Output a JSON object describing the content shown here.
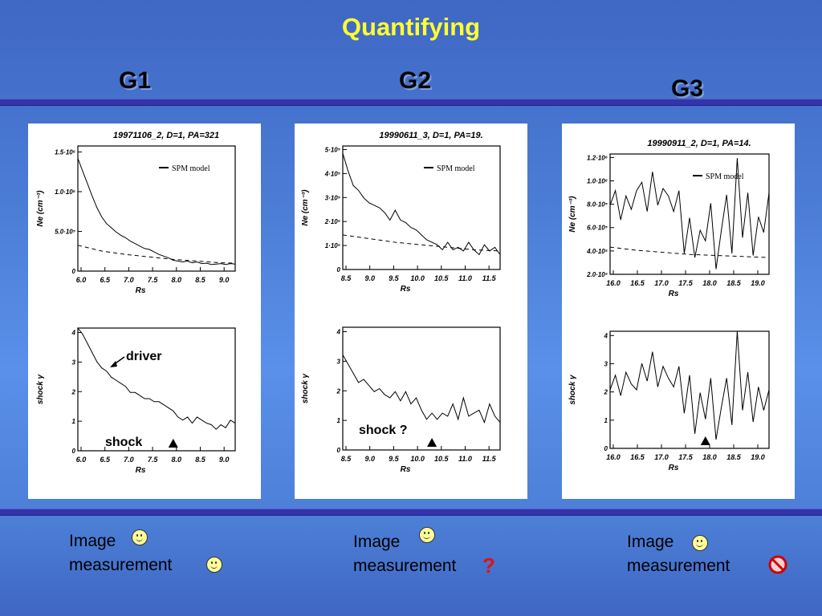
{
  "slide": {
    "title": "Quantifying",
    "groups": [
      "G1",
      "G2",
      "G3"
    ],
    "captions": {
      "image": "Image",
      "measurement": "measurement",
      "g2_mark": "?"
    },
    "colors": {
      "title": "#ffff33",
      "rule": "#3333aa",
      "question_mark": "#e01010"
    },
    "status_icons": [
      "smiley-icon",
      "smiley-icon",
      "smiley-icon",
      "question-mark",
      "smiley-icon",
      "no-entry-icon"
    ]
  },
  "chart_data": [
    {
      "type": "line",
      "group": "G1",
      "title": "19971106_2, D=1, PA=321",
      "xlabel": "Rs",
      "ylabel": "Ne (cm⁻³)",
      "legend": "SPM model",
      "legend_position": "top-right",
      "xlim": [
        6.0,
        9.3
      ],
      "xticks": [
        "6.0",
        "6.5",
        "7.0",
        "7.5",
        "8.0",
        "8.5",
        "9.0"
      ],
      "yticks": [
        "0",
        "5.0·10⁵",
        "1.0·10⁶",
        "1.5·10⁶"
      ],
      "ylim": [
        0,
        1500000
      ],
      "series": [
        {
          "style": "solid",
          "x": [
            6.0,
            6.1,
            6.2,
            6.3,
            6.4,
            6.5,
            6.6,
            6.7,
            6.8,
            6.9,
            7.0,
            7.1,
            7.2,
            7.3,
            7.4,
            7.5,
            7.6,
            7.7,
            7.8,
            7.9,
            8.0,
            8.1,
            8.2,
            8.3,
            8.4,
            8.5,
            8.6,
            8.7,
            8.8,
            8.9,
            9.0,
            9.1,
            9.2,
            9.3
          ],
          "y": [
            1350000,
            1200000,
            1050000,
            900000,
            760000,
            650000,
            570000,
            520000,
            470000,
            430000,
            400000,
            360000,
            330000,
            300000,
            270000,
            260000,
            230000,
            200000,
            180000,
            160000,
            130000,
            120000,
            110000,
            120000,
            100000,
            110000,
            90000,
            95000,
            80000,
            85000,
            90000,
            80000,
            90000,
            85000
          ]
        },
        {
          "name": "SPM model",
          "style": "dashed",
          "x": [
            6.0,
            6.5,
            7.0,
            7.5,
            8.0,
            8.5,
            9.0,
            9.3
          ],
          "y": [
            310000,
            240000,
            200000,
            170000,
            140000,
            120000,
            100000,
            95000
          ]
        }
      ]
    },
    {
      "type": "line",
      "group": "G1",
      "xlabel": "Rs",
      "ylabel": "shock γ",
      "xlim": [
        6.0,
        9.3
      ],
      "ylim": [
        0,
        4
      ],
      "xticks": [
        "6.0",
        "6.5",
        "7.0",
        "7.5",
        "8.0",
        "8.5",
        "9.0"
      ],
      "yticks": [
        "0",
        "1",
        "2",
        "3",
        "4"
      ],
      "annotations": [
        "driver",
        "shock"
      ],
      "shock_marker_x": 8.0,
      "series": [
        {
          "style": "solid",
          "x": [
            6.0,
            6.1,
            6.2,
            6.3,
            6.4,
            6.5,
            6.6,
            6.7,
            6.8,
            6.9,
            7.0,
            7.1,
            7.2,
            7.3,
            7.4,
            7.5,
            7.6,
            7.7,
            7.8,
            7.9,
            8.0,
            8.1,
            8.2,
            8.3,
            8.4,
            8.5,
            8.6,
            8.7,
            8.8,
            8.9,
            9.0,
            9.1,
            9.2,
            9.3
          ],
          "y": [
            4.0,
            3.8,
            3.5,
            3.2,
            2.9,
            2.7,
            2.6,
            2.4,
            2.3,
            2.2,
            2.1,
            1.9,
            1.9,
            1.8,
            1.7,
            1.7,
            1.6,
            1.6,
            1.5,
            1.4,
            1.3,
            1.1,
            1.0,
            1.1,
            0.9,
            1.1,
            1.0,
            0.9,
            0.85,
            0.7,
            0.85,
            0.75,
            1.0,
            0.9
          ]
        }
      ]
    },
    {
      "type": "line",
      "group": "G2",
      "title": "19990611_3, D=1, PA=19.",
      "xlabel": "Rs",
      "ylabel": "Ne (cm⁻³)",
      "legend": "SPM model",
      "legend_position": "top-right",
      "xlim": [
        8.5,
        11.5
      ],
      "xticks": [
        "8.5",
        "9.0",
        "9.5",
        "10.0",
        "10.5",
        "11.0",
        "11.5"
      ],
      "yticks": [
        "0",
        "1·10⁵",
        "2·10⁵",
        "3·10⁵",
        "4·10⁵",
        "5·10⁵"
      ],
      "ylim": [
        0,
        500000
      ],
      "series": [
        {
          "style": "solid",
          "x": [
            8.5,
            8.6,
            8.7,
            8.8,
            8.9,
            9.0,
            9.1,
            9.2,
            9.3,
            9.4,
            9.5,
            9.6,
            9.7,
            9.8,
            9.9,
            10.0,
            10.1,
            10.2,
            10.3,
            10.4,
            10.5,
            10.6,
            10.7,
            10.8,
            10.9,
            11.0,
            11.1,
            11.2,
            11.3,
            11.4,
            11.5
          ],
          "y": [
            470000,
            400000,
            340000,
            320000,
            290000,
            270000,
            260000,
            250000,
            230000,
            200000,
            240000,
            200000,
            190000,
            170000,
            160000,
            140000,
            120000,
            110000,
            100000,
            80000,
            110000,
            80000,
            90000,
            75000,
            110000,
            80000,
            60000,
            100000,
            75000,
            90000,
            60000
          ]
        },
        {
          "name": "SPM model",
          "style": "dashed",
          "x": [
            8.5,
            9.0,
            9.5,
            10.0,
            10.5,
            11.0,
            11.5
          ],
          "y": [
            140000,
            125000,
            110000,
            100000,
            90000,
            80000,
            75000
          ]
        }
      ]
    },
    {
      "type": "line",
      "group": "G2",
      "xlabel": "Rs",
      "ylabel": "shock γ",
      "xlim": [
        8.5,
        11.5
      ],
      "ylim": [
        0,
        4
      ],
      "xticks": [
        "8.5",
        "9.0",
        "9.5",
        "10.0",
        "10.5",
        "11.0",
        "11.5"
      ],
      "yticks": [
        "0",
        "1",
        "2",
        "3",
        "4"
      ],
      "annotations": [
        "shock ?"
      ],
      "shock_marker_x": 10.2,
      "series": [
        {
          "style": "solid",
          "x": [
            8.5,
            8.6,
            8.7,
            8.8,
            8.9,
            9.0,
            9.1,
            9.2,
            9.3,
            9.4,
            9.5,
            9.6,
            9.7,
            9.8,
            9.9,
            10.0,
            10.1,
            10.2,
            10.3,
            10.4,
            10.5,
            10.6,
            10.7,
            10.8,
            10.9,
            11.0,
            11.1,
            11.2,
            11.3,
            11.4,
            11.5
          ],
          "y": [
            3.1,
            2.8,
            2.5,
            2.2,
            2.3,
            2.1,
            1.9,
            2.0,
            1.8,
            1.7,
            1.9,
            1.6,
            1.9,
            1.5,
            1.7,
            1.3,
            1.0,
            1.2,
            1.0,
            1.2,
            1.1,
            1.5,
            1.0,
            1.7,
            1.1,
            1.2,
            1.3,
            0.9,
            1.5,
            1.1,
            0.9
          ]
        }
      ]
    },
    {
      "type": "line",
      "group": "G3",
      "title": "19990911_2, D=1, PA=14.",
      "xlabel": "Rs",
      "ylabel": "Ne (cm⁻³)",
      "legend": "SPM model",
      "legend_position": "top-right",
      "xlim": [
        16.0,
        19.0
      ],
      "xticks": [
        "16.0",
        "16.5",
        "17.0",
        "17.5",
        "18.0",
        "18.5",
        "19.0"
      ],
      "yticks": [
        "2.0·10⁵",
        "4.0·10⁵",
        "6.0·10⁵",
        "8.0·10⁵",
        "1.0·10⁶",
        "1.2·10⁶"
      ],
      "ylim": [
        100000,
        1250000
      ],
      "series": [
        {
          "style": "solid",
          "x": [
            16.0,
            16.1,
            16.2,
            16.3,
            16.4,
            16.5,
            16.6,
            16.7,
            16.8,
            16.9,
            17.0,
            17.1,
            17.2,
            17.3,
            17.4,
            17.5,
            17.6,
            17.7,
            17.8,
            17.9,
            18.0,
            18.1,
            18.2,
            18.3,
            18.4,
            18.5,
            18.6,
            18.7,
            18.8,
            18.9,
            19.0
          ],
          "y": [
            760000,
            900000,
            620000,
            850000,
            720000,
            900000,
            980000,
            700000,
            1080000,
            760000,
            920000,
            850000,
            700000,
            900000,
            300000,
            640000,
            260000,
            520000,
            420000,
            780000,
            150000,
            520000,
            860000,
            300000,
            1210000,
            450000,
            880000,
            280000,
            650000,
            500000,
            880000
          ]
        },
        {
          "name": "SPM model",
          "style": "dashed",
          "x": [
            16.0,
            16.5,
            17.0,
            17.5,
            18.0,
            18.5,
            19.0
          ],
          "y": [
            360000,
            330000,
            310000,
            290000,
            280000,
            270000,
            260000
          ]
        }
      ]
    },
    {
      "type": "line",
      "group": "G3",
      "xlabel": "Rs",
      "ylabel": "shock γ",
      "xlim": [
        16.0,
        19.0
      ],
      "ylim": [
        0,
        4
      ],
      "xticks": [
        "16.0",
        "16.5",
        "17.0",
        "17.5",
        "18.0",
        "18.5",
        "19.0"
      ],
      "yticks": [
        "0",
        "1",
        "2",
        "3",
        "4"
      ],
      "shock_marker_x": 17.8,
      "series": [
        {
          "style": "solid",
          "x": [
            16.0,
            16.1,
            16.2,
            16.3,
            16.4,
            16.5,
            16.6,
            16.7,
            16.8,
            16.9,
            17.0,
            17.1,
            17.2,
            17.3,
            17.4,
            17.5,
            17.6,
            17.7,
            17.8,
            17.9,
            18.0,
            18.1,
            18.2,
            18.3,
            18.4,
            18.5,
            18.6,
            18.7,
            18.8,
            18.9,
            19.0
          ],
          "y": [
            2.0,
            2.5,
            1.8,
            2.6,
            2.2,
            2.0,
            2.9,
            2.3,
            3.3,
            2.1,
            2.8,
            2.4,
            2.1,
            2.8,
            1.2,
            2.5,
            0.5,
            1.9,
            1.0,
            2.4,
            0.3,
            1.4,
            2.4,
            0.8,
            4.0,
            1.3,
            2.6,
            0.9,
            2.1,
            1.3,
            2.0
          ]
        }
      ]
    }
  ]
}
